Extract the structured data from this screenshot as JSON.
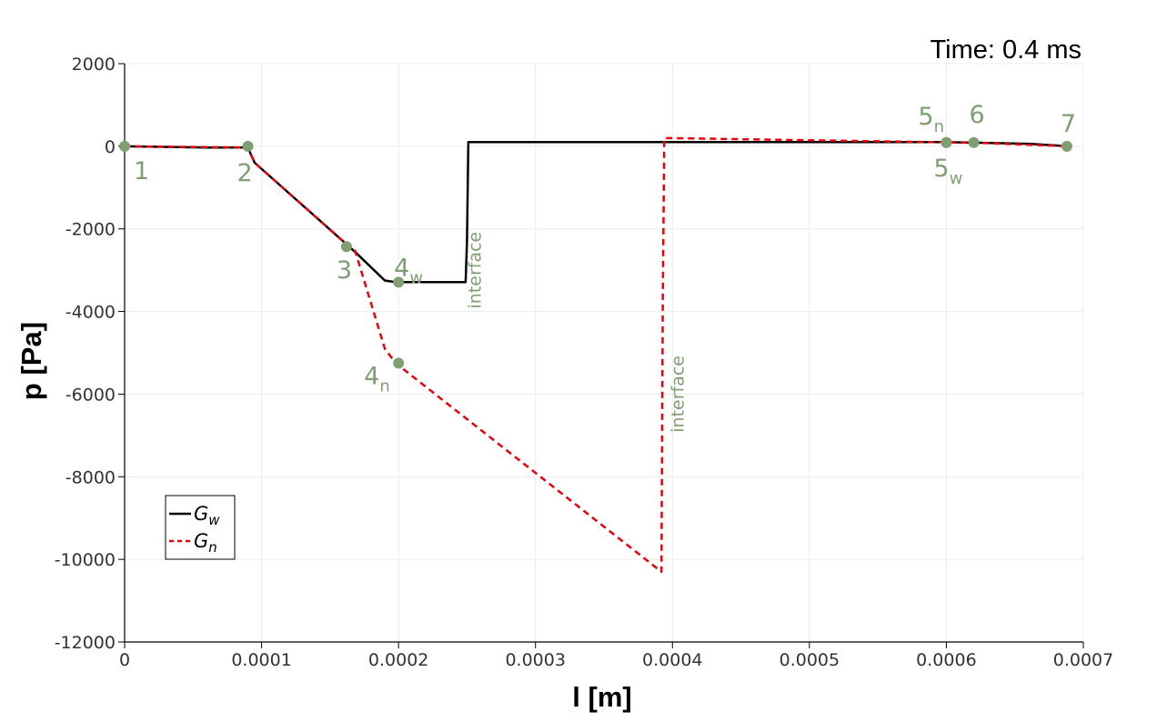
{
  "time_label": "Time: 0.4 ms",
  "colors": {
    "Gw": "#000000",
    "Gn": "#e8000b",
    "markers": "#7f9f73"
  },
  "chart_data": {
    "type": "line",
    "xlabel": "l [m]",
    "ylabel": "p [Pa]",
    "xlim": [
      0,
      0.0007
    ],
    "ylim": [
      -12000,
      2000
    ],
    "xticks": [
      "0",
      "0.0001",
      "0.0002",
      "0.0003",
      "0.0004",
      "0.0005",
      "0.0006",
      "0.0007"
    ],
    "yticks": [
      "2000",
      "0",
      "-2000",
      "-4000",
      "-6000",
      "-8000",
      "-10000",
      "-12000"
    ],
    "grid": true,
    "legend": {
      "position": "bottom-left",
      "entries": [
        {
          "key": "Gw",
          "base": "G",
          "sub": "w"
        },
        {
          "key": "Gn",
          "base": "G",
          "sub": "n"
        }
      ]
    },
    "series": [
      {
        "key": "Gw",
        "style": "solid",
        "x": [
          0,
          6e-05,
          9e-05,
          9.5e-05,
          0.000163,
          0.000168,
          0.00019,
          0.000198,
          0.000249,
          0.00025,
          0.000251,
          0.0006,
          0.00066,
          0.00069
        ],
        "y": [
          0,
          -30,
          -30,
          -400,
          -2400,
          -2550,
          -3250,
          -3290,
          -3290,
          -2300,
          100,
          100,
          60,
          0
        ]
      },
      {
        "key": "Gn",
        "style": "dashed",
        "x": [
          0,
          9e-05,
          9.5e-05,
          0.000163,
          0.000168,
          0.00019,
          0.000198,
          0.000392,
          0.000393,
          0.000394,
          0.00059,
          0.000625,
          0.00069
        ],
        "y": [
          0,
          -30,
          -400,
          -2400,
          -2500,
          -4900,
          -5250,
          -10300,
          -3600,
          200,
          100,
          80,
          0
        ]
      }
    ],
    "points": [
      {
        "x": 0,
        "y": 0,
        "label": "1",
        "sub": ""
      },
      {
        "x": 9e-05,
        "y": 0,
        "label": "2",
        "sub": ""
      },
      {
        "x": 0.000162,
        "y": -2430,
        "label": "3",
        "sub": ""
      },
      {
        "x": 0.0002,
        "y": -3290,
        "label": "4",
        "sub": "w"
      },
      {
        "x": 0.0002,
        "y": -5250,
        "label": "4",
        "sub": "n"
      },
      {
        "x": 0.0006,
        "y": 90,
        "label": "5",
        "sub": "n"
      },
      {
        "x": 0.0006,
        "y": 90,
        "label": "5",
        "sub": "w"
      },
      {
        "x": 0.00062,
        "y": 90,
        "label": "6",
        "sub": ""
      },
      {
        "x": 0.000688,
        "y": 0,
        "label": "7",
        "sub": ""
      }
    ],
    "annotations": [
      {
        "text": "interface",
        "x": 0.00026,
        "y": -3000
      },
      {
        "text": "interface",
        "x": 0.000408,
        "y": -6000
      }
    ]
  }
}
